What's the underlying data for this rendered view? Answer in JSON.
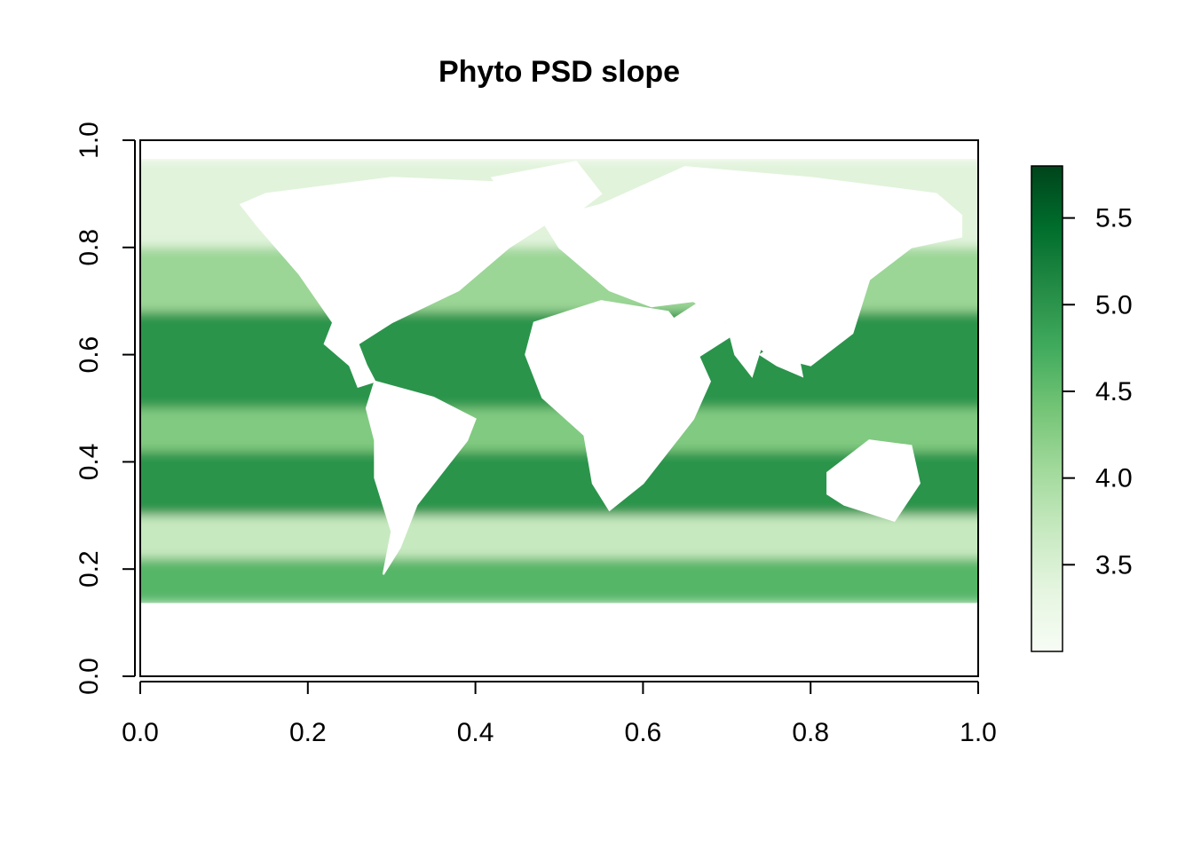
{
  "chart_data": {
    "type": "heatmap",
    "title": "Phyto PSD slope",
    "xlabel": "",
    "ylabel": "",
    "xlim": [
      0.0,
      1.0
    ],
    "ylim": [
      0.0,
      1.0
    ],
    "x_ticks": [
      "0.0",
      "0.2",
      "0.4",
      "0.6",
      "0.8",
      "1.0"
    ],
    "y_ticks": [
      "0.0",
      "0.2",
      "0.4",
      "0.6",
      "0.8",
      "1.0"
    ],
    "x_tick_values": [
      0.0,
      0.2,
      0.4,
      0.6,
      0.8,
      1.0
    ],
    "y_tick_values": [
      0.0,
      0.2,
      0.4,
      0.6,
      0.8,
      1.0
    ],
    "grid": false,
    "data_extent": {
      "x": [
        0.0,
        1.0
      ],
      "y": [
        0.135,
        0.965
      ]
    },
    "colorbar": {
      "range": [
        3.0,
        5.8
      ],
      "ticks": [
        "3.5",
        "4.0",
        "4.5",
        "5.0",
        "5.5"
      ],
      "tick_values": [
        3.5,
        4.0,
        4.5,
        5.0,
        5.5
      ],
      "colors": [
        "#f7fcf5",
        "#e5f5e0",
        "#c7e9c0",
        "#a1d99b",
        "#74c476",
        "#41ab5d",
        "#238b45",
        "#006d2c",
        "#00441b"
      ],
      "placement": "right"
    },
    "latitude_bands": [
      {
        "y": [
          0.135,
          0.22
        ],
        "value": 4.6
      },
      {
        "y": [
          0.22,
          0.3
        ],
        "value": 3.7
      },
      {
        "y": [
          0.3,
          0.42
        ],
        "value": 5.0
      },
      {
        "y": [
          0.42,
          0.5
        ],
        "value": 4.3
      },
      {
        "y": [
          0.5,
          0.68
        ],
        "value": 5.0
      },
      {
        "y": [
          0.68,
          0.8
        ],
        "value": 4.1
      },
      {
        "y": [
          0.8,
          0.965
        ],
        "value": 3.4
      }
    ],
    "land_mask": [
      {
        "name": "North America",
        "poly": [
          [
            0.15,
            0.9
          ],
          [
            0.3,
            0.93
          ],
          [
            0.45,
            0.92
          ],
          [
            0.5,
            0.86
          ],
          [
            0.44,
            0.8
          ],
          [
            0.38,
            0.72
          ],
          [
            0.3,
            0.66
          ],
          [
            0.26,
            0.62
          ],
          [
            0.23,
            0.66
          ],
          [
            0.19,
            0.75
          ],
          [
            0.14,
            0.84
          ],
          [
            0.12,
            0.88
          ]
        ]
      },
      {
        "name": "Greenland",
        "poly": [
          [
            0.42,
            0.93
          ],
          [
            0.52,
            0.96
          ],
          [
            0.55,
            0.9
          ],
          [
            0.5,
            0.84
          ],
          [
            0.45,
            0.86
          ]
        ]
      },
      {
        "name": "Central America",
        "poly": [
          [
            0.23,
            0.66
          ],
          [
            0.26,
            0.62
          ],
          [
            0.27,
            0.58
          ],
          [
            0.28,
            0.55
          ],
          [
            0.26,
            0.54
          ],
          [
            0.25,
            0.58
          ],
          [
            0.22,
            0.62
          ]
        ]
      },
      {
        "name": "South America",
        "poly": [
          [
            0.28,
            0.55
          ],
          [
            0.35,
            0.52
          ],
          [
            0.4,
            0.48
          ],
          [
            0.39,
            0.44
          ],
          [
            0.36,
            0.38
          ],
          [
            0.33,
            0.32
          ],
          [
            0.31,
            0.24
          ],
          [
            0.29,
            0.19
          ],
          [
            0.3,
            0.27
          ],
          [
            0.28,
            0.37
          ],
          [
            0.28,
            0.44
          ],
          [
            0.27,
            0.5
          ]
        ]
      },
      {
        "name": "Europe and Asia",
        "poly": [
          [
            0.48,
            0.85
          ],
          [
            0.55,
            0.88
          ],
          [
            0.65,
            0.95
          ],
          [
            0.8,
            0.93
          ],
          [
            0.95,
            0.9
          ],
          [
            0.98,
            0.86
          ],
          [
            0.98,
            0.82
          ],
          [
            0.92,
            0.8
          ],
          [
            0.87,
            0.74
          ],
          [
            0.85,
            0.64
          ],
          [
            0.8,
            0.58
          ],
          [
            0.75,
            0.6
          ],
          [
            0.7,
            0.66
          ],
          [
            0.66,
            0.7
          ],
          [
            0.61,
            0.69
          ],
          [
            0.56,
            0.72
          ],
          [
            0.5,
            0.8
          ]
        ]
      },
      {
        "name": "Africa",
        "poly": [
          [
            0.47,
            0.66
          ],
          [
            0.55,
            0.7
          ],
          [
            0.63,
            0.68
          ],
          [
            0.66,
            0.62
          ],
          [
            0.68,
            0.55
          ],
          [
            0.66,
            0.48
          ],
          [
            0.6,
            0.36
          ],
          [
            0.56,
            0.31
          ],
          [
            0.54,
            0.36
          ],
          [
            0.53,
            0.45
          ],
          [
            0.48,
            0.52
          ],
          [
            0.46,
            0.6
          ]
        ]
      },
      {
        "name": "Arabia",
        "poly": [
          [
            0.63,
            0.66
          ],
          [
            0.67,
            0.7
          ],
          [
            0.71,
            0.64
          ],
          [
            0.66,
            0.59
          ],
          [
            0.64,
            0.62
          ]
        ]
      },
      {
        "name": "India",
        "poly": [
          [
            0.7,
            0.66
          ],
          [
            0.75,
            0.66
          ],
          [
            0.73,
            0.56
          ],
          [
            0.71,
            0.6
          ]
        ]
      },
      {
        "name": "Southeast Asia",
        "poly": [
          [
            0.74,
            0.6
          ],
          [
            0.78,
            0.64
          ],
          [
            0.79,
            0.56
          ],
          [
            0.76,
            0.58
          ]
        ]
      },
      {
        "name": "Australia",
        "poly": [
          [
            0.82,
            0.38
          ],
          [
            0.87,
            0.44
          ],
          [
            0.92,
            0.43
          ],
          [
            0.93,
            0.36
          ],
          [
            0.9,
            0.29
          ],
          [
            0.84,
            0.32
          ],
          [
            0.82,
            0.34
          ]
        ]
      },
      {
        "name": "Antarctica",
        "poly": [
          [
            0.0,
            0.0
          ],
          [
            1.0,
            0.0
          ],
          [
            1.0,
            0.135
          ],
          [
            0.0,
            0.135
          ]
        ]
      }
    ]
  }
}
